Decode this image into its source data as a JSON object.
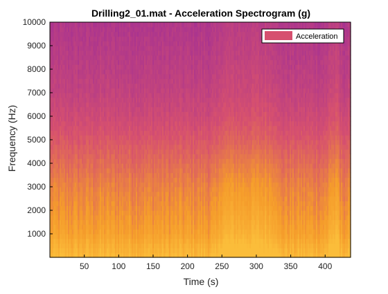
{
  "chart_data": {
    "type": "heatmap",
    "title": "Drilling2_01.mat - Acceleration Spectrogram (g)",
    "xlabel": "Time (s)",
    "ylabel": "Frequency (Hz)",
    "xlim": [
      0,
      437
    ],
    "ylim": [
      0,
      10000
    ],
    "x_ticks": [
      50,
      100,
      150,
      200,
      250,
      300,
      350,
      400
    ],
    "y_ticks": [
      1000,
      2000,
      3000,
      4000,
      5000,
      6000,
      7000,
      8000,
      9000,
      10000
    ],
    "legend": {
      "entries": [
        "Acceleration"
      ],
      "placement": "top-right",
      "swatch_color": "#d6506f"
    },
    "colormap": "plasma-like",
    "colors": {
      "low": "#9a2a9a",
      "mid": "#d6506f",
      "high": "#f59c2b",
      "peak": "#fbbd3a"
    },
    "trend": {
      "bands_hz": [
        0,
        500,
        1000,
        2000,
        3000,
        4000,
        5000,
        6000,
        7000,
        8000,
        9000,
        10000
      ],
      "relative_intensity": [
        0.95,
        0.85,
        0.72,
        0.62,
        0.55,
        0.45,
        0.36,
        0.28,
        0.22,
        0.18,
        0.15,
        0.12
      ],
      "high_energy_time_ranges_s": [
        [
          245,
          330
        ],
        [
          405,
          420
        ]
      ],
      "grid": false
    }
  }
}
